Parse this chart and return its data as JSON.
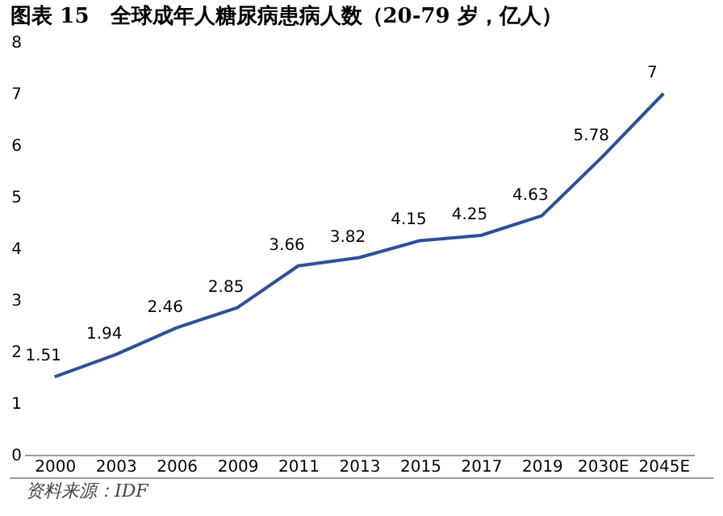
{
  "chart_data": {
    "type": "line",
    "title": "图表 15　全球成年人糖尿病患病人数（20-79 岁，亿人）",
    "categories": [
      "2000",
      "2003",
      "2006",
      "2009",
      "2011",
      "2013",
      "2015",
      "2017",
      "2019",
      "2030E",
      "2045E"
    ],
    "series": [
      {
        "color": "#2f4f9a",
        "values": [
          1.51,
          1.94,
          2.46,
          2.85,
          3.66,
          3.82,
          4.15,
          4.25,
          4.63,
          5.78,
          7
        ]
      }
    ],
    "ylim": [
      0,
      8
    ],
    "yticks": [
      0,
      1,
      2,
      3,
      4,
      5,
      6,
      7,
      8
    ],
    "grid": false,
    "data_labels": true,
    "marker": "none",
    "line_style": "solid",
    "annotations": [
      "资料来源：IDF"
    ]
  }
}
